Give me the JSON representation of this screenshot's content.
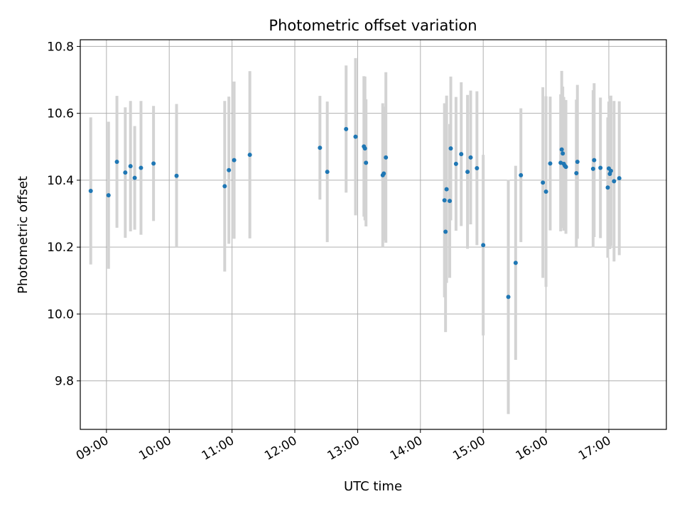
{
  "chart_data": {
    "type": "scatter",
    "title": "Photometric offset variation",
    "xlabel": "UTC time",
    "ylabel": "Photometric offset",
    "x_ticks": [
      "09:00",
      "10:00",
      "11:00",
      "12:00",
      "13:00",
      "14:00",
      "15:00",
      "16:00",
      "17:00"
    ],
    "y_ticks": [
      "9.8",
      "10.0",
      "10.2",
      "10.4",
      "10.6",
      "10.8"
    ],
    "xlim": [
      "08:35",
      "17:55"
    ],
    "ylim": [
      9.655,
      10.82
    ],
    "grid": true,
    "colors": {
      "marker": "#1f77b4",
      "errorbar": "#d3d3d3",
      "grid": "#b0b0b0"
    },
    "series": [
      {
        "x": [
          "08:45",
          "09:02",
          "09:10",
          "09:18",
          "09:23",
          "09:27",
          "09:33",
          "09:45",
          "10:07",
          "10:53",
          "10:57",
          "11:02",
          "11:17",
          "12:24",
          "12:31",
          "12:49",
          "12:58",
          "13:06",
          "13:07",
          "13:08",
          "13:24",
          "13:25",
          "13:27",
          "14:23",
          "14:24",
          "14:25",
          "14:28",
          "14:29",
          "14:34",
          "14:39",
          "14:45",
          "14:48",
          "14:54",
          "15:00",
          "15:24",
          "15:31",
          "15:36",
          "15:57",
          "16:00",
          "16:04",
          "16:14",
          "16:15",
          "16:16",
          "16:17",
          "16:18",
          "16:19",
          "16:29",
          "16:30",
          "16:45",
          "16:46",
          "16:52",
          "16:59",
          "17:00",
          "17:01",
          "17:02",
          "17:05",
          "17:10"
        ],
        "y": [
          10.368,
          10.355,
          10.455,
          10.423,
          10.442,
          10.407,
          10.437,
          10.45,
          10.413,
          10.382,
          10.43,
          10.46,
          10.476,
          10.497,
          10.425,
          10.553,
          10.53,
          10.501,
          10.495,
          10.452,
          10.415,
          10.42,
          10.468,
          10.34,
          10.246,
          10.373,
          10.338,
          10.495,
          10.449,
          10.478,
          10.425,
          10.468,
          10.436,
          10.206,
          10.051,
          10.153,
          10.415,
          10.393,
          10.366,
          10.45,
          10.452,
          10.492,
          10.48,
          10.449,
          10.443,
          10.44,
          10.421,
          10.455,
          10.434,
          10.46,
          10.437,
          10.378,
          10.435,
          10.419,
          10.428,
          10.397,
          10.406
        ],
        "yerr": [
          0.22,
          0.22,
          0.197,
          0.195,
          0.195,
          0.155,
          0.2,
          0.172,
          0.215,
          0.255,
          0.22,
          0.235,
          0.25,
          0.155,
          0.21,
          0.19,
          0.235,
          0.21,
          0.215,
          0.19,
          0.215,
          0.2,
          0.255,
          0.29,
          0.3,
          0.28,
          0.23,
          0.215,
          0.2,
          0.215,
          0.23,
          0.2,
          0.23,
          0.27,
          0.35,
          0.29,
          0.2,
          0.285,
          0.285,
          0.2,
          0.205,
          0.235,
          0.2,
          0.2,
          0.19,
          0.2,
          0.22,
          0.23,
          0.235,
          0.23,
          0.21,
          0.21,
          0.2,
          0.225,
          0.225,
          0.24,
          0.23
        ]
      }
    ]
  }
}
